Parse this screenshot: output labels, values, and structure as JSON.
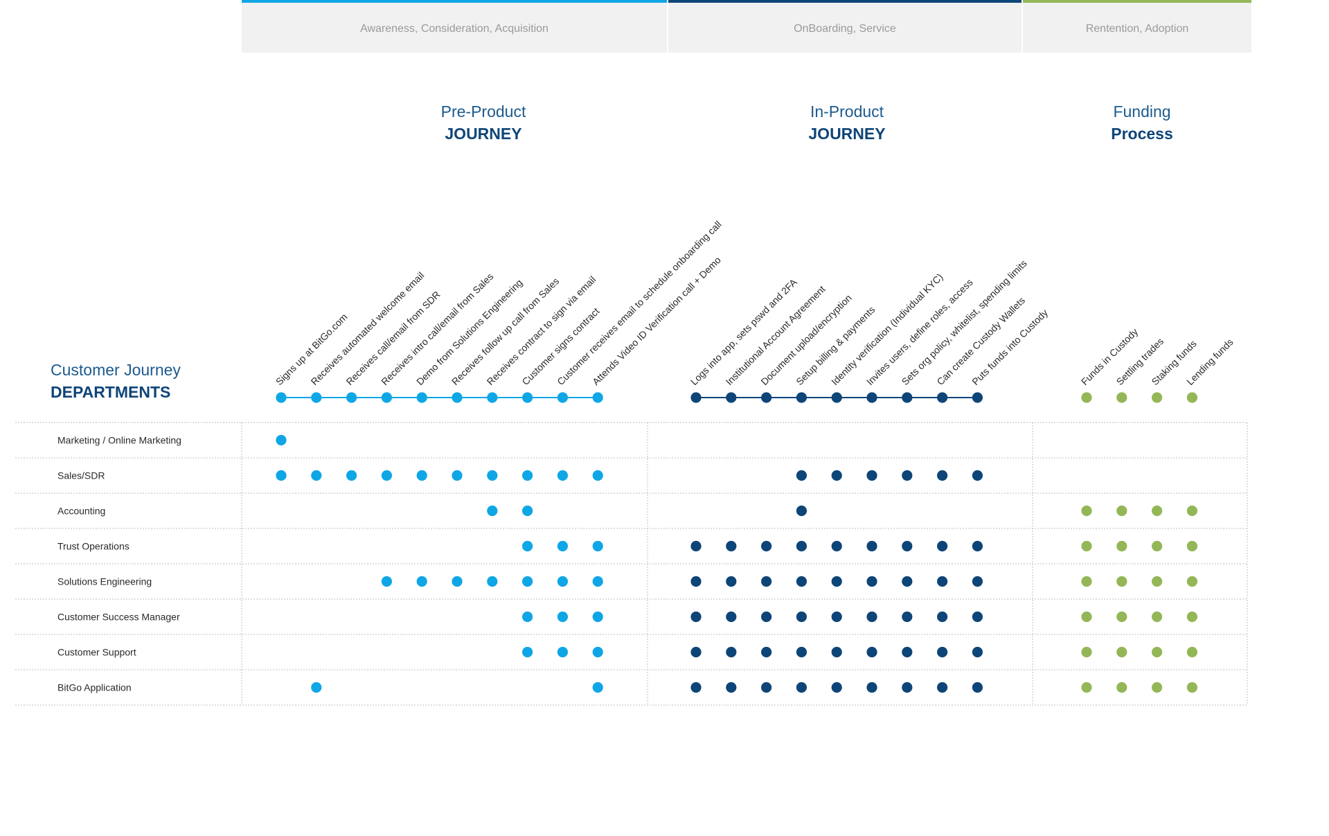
{
  "colors": {
    "pre": "#0fa6e6",
    "in": "#0e4578",
    "fund": "#93b757",
    "phase_bg": "#f1f1f1",
    "grid": "#bfbfbf"
  },
  "phases": [
    {
      "label": "Awareness, Consideration, Acquisition",
      "accent": "pre"
    },
    {
      "label": "OnBoarding, Service",
      "accent": "in"
    },
    {
      "label": "Rentention, Adoption",
      "accent": "fund"
    }
  ],
  "header": {
    "line1": "Customer Journey",
    "line2": "DEPARTMENTS"
  },
  "groups": [
    {
      "id": "pre",
      "title_line1": "Pre-Product",
      "title_line2": "JOURNEY",
      "steps": [
        "Signs up at BitGo.com",
        "Receives automated welcome email",
        "Receives call/email from SDR",
        "Receives intro call/email from Sales",
        "Demo from Solutions Engineering",
        "Receives follow up call from Sales",
        "Receives contract to sign via email",
        "Customer signs contract",
        "Customer receives email to schedule onboarding call",
        "Attends Video ID Verification call + Demo"
      ]
    },
    {
      "id": "in",
      "title_line1": "In-Product",
      "title_line2": "JOURNEY",
      "steps": [
        "Logs into app, sets pswd and 2FA",
        "Institutional Account Agreement",
        "Document upload/encryption",
        "Setup billing & payments",
        "Identity verification (Individual KYC)",
        "Invites users, define roles, access",
        "Sets org policy, whitelist, spending limits",
        "Can create Custody Wallets",
        "Puts funds into Custody"
      ]
    },
    {
      "id": "fund",
      "title_line1": "Funding",
      "title_line2": "Process",
      "steps": [
        "Funds in Custody",
        "Settling trades",
        "Staking funds",
        "Lending funds"
      ]
    }
  ],
  "departments": [
    {
      "name": "Marketing / Online Marketing",
      "pre": [
        0
      ],
      "in": [],
      "fund": []
    },
    {
      "name": "Sales/SDR",
      "pre": [
        0,
        1,
        2,
        3,
        4,
        5,
        6,
        7,
        8,
        9
      ],
      "in": [
        3,
        4,
        5,
        6,
        7,
        8
      ],
      "fund": []
    },
    {
      "name": "Accounting",
      "pre": [
        6,
        7
      ],
      "in": [
        3
      ],
      "fund": [
        0,
        1,
        2,
        3
      ]
    },
    {
      "name": "Trust Operations",
      "pre": [
        7,
        8,
        9
      ],
      "in": [
        0,
        1,
        2,
        3,
        4,
        5,
        6,
        7,
        8
      ],
      "fund": [
        0,
        1,
        2,
        3
      ]
    },
    {
      "name": "Solutions Engineering",
      "pre": [
        3,
        4,
        5,
        6,
        7,
        8,
        9
      ],
      "in": [
        0,
        1,
        2,
        3,
        4,
        5,
        6,
        7,
        8
      ],
      "fund": [
        0,
        1,
        2,
        3
      ]
    },
    {
      "name": "Customer Success Manager",
      "pre": [
        7,
        8,
        9
      ],
      "in": [
        0,
        1,
        2,
        3,
        4,
        5,
        6,
        7,
        8
      ],
      "fund": [
        0,
        1,
        2,
        3
      ]
    },
    {
      "name": "Customer Support",
      "pre": [
        7,
        8,
        9
      ],
      "in": [
        0,
        1,
        2,
        3,
        4,
        5,
        6,
        7,
        8
      ],
      "fund": [
        0,
        1,
        2,
        3
      ]
    },
    {
      "name": "BitGo Application",
      "pre": [
        1,
        9
      ],
      "in": [
        0,
        1,
        2,
        3,
        4,
        5,
        6,
        7,
        8
      ],
      "fund": [
        0,
        1,
        2,
        3
      ]
    }
  ]
}
